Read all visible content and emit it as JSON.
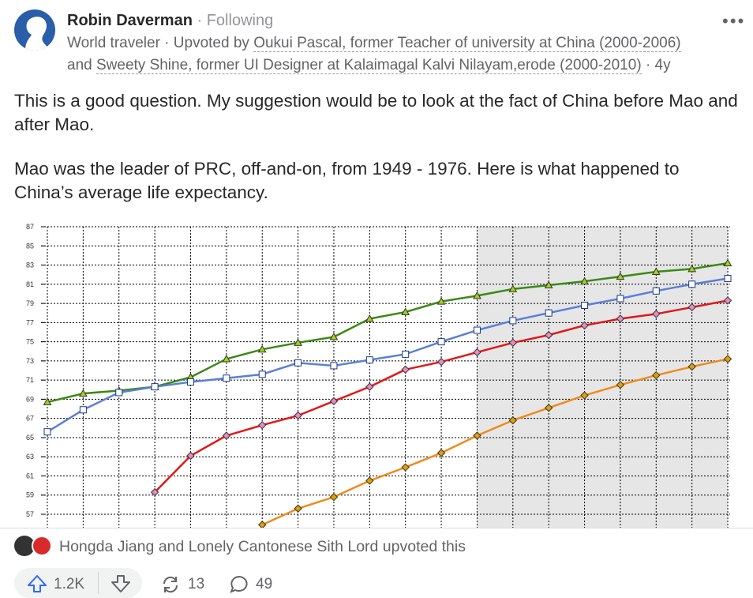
{
  "post": {
    "author": "Robin Daverman",
    "following": "· Following",
    "credential_line1": "World traveler · Upvoted by ",
    "upvoter1": "Oukui Pascal, former Teacher of university at China (2000-2006)",
    "credential_line2": "and ",
    "upvoter2": "Sweety Shine, former UI Designer at Kalaimagal Kalvi Nilayam,erode (2000-2010)",
    "age": "· 4y",
    "paragraphs": [
      "This is a good question. My suggestion would be to look at the fact of China before Mao and after Mao.",
      "Mao was the leader of PRC, off-and-on, from 1949 - 1976. Here is what happened to China’s average life expectancy."
    ]
  },
  "chart_data": {
    "type": "line",
    "categories": [
      null,
      null,
      null,
      null,
      null,
      null,
      null,
      null,
      null,
      null,
      null,
      null,
      null,
      null,
      null,
      null,
      null,
      null,
      null,
      null
    ],
    "series": [
      {
        "color": "#3a8a14",
        "marker": "triangle",
        "marker_color": "#a6d01c",
        "values": [
          68.7,
          69.6,
          69.9,
          70.3,
          71.3,
          73.2,
          74.2,
          74.9,
          75.5,
          77.4,
          78.1,
          79.2,
          79.8,
          80.5,
          80.9,
          81.3,
          81.8,
          82.3,
          82.6,
          83.2
        ]
      },
      {
        "color": "#5b7fd6",
        "marker": "square",
        "marker_color": "#ffffff",
        "values": [
          65.6,
          67.9,
          69.7,
          70.3,
          70.8,
          71.2,
          71.6,
          72.8,
          72.5,
          73.1,
          73.7,
          75.0,
          76.2,
          77.2,
          78.0,
          78.8,
          79.5,
          80.3,
          81.0,
          81.6
        ]
      },
      {
        "color": "#e01818",
        "marker": "diamond",
        "marker_color": "#e88bc0",
        "values": [
          null,
          null,
          null,
          59.3,
          63.1,
          65.2,
          66.3,
          67.3,
          68.8,
          70.3,
          72.1,
          72.9,
          73.9,
          74.9,
          75.7,
          76.7,
          77.4,
          77.9,
          78.6,
          79.3
        ]
      },
      {
        "color": "#f08a1c",
        "marker": "diamond",
        "marker_color": "#e0a000",
        "values": [
          null,
          null,
          null,
          null,
          null,
          null,
          55.9,
          57.6,
          58.8,
          60.5,
          61.9,
          63.4,
          65.2,
          66.8,
          68.1,
          69.4,
          70.5,
          71.5,
          72.4,
          73.2
        ]
      }
    ],
    "ylim": [
      55.6,
      87
    ],
    "yticks": [
      57,
      59,
      61,
      63,
      65,
      67,
      69,
      71,
      73,
      75,
      77,
      79,
      81,
      83,
      85,
      87
    ],
    "grid": true
  },
  "footer": {
    "upvoters": "Hongda Jiang and Lonely Cantonese Sith Lord upvoted this",
    "upvotes": "1.2K",
    "shares": "13",
    "comments": "49"
  }
}
